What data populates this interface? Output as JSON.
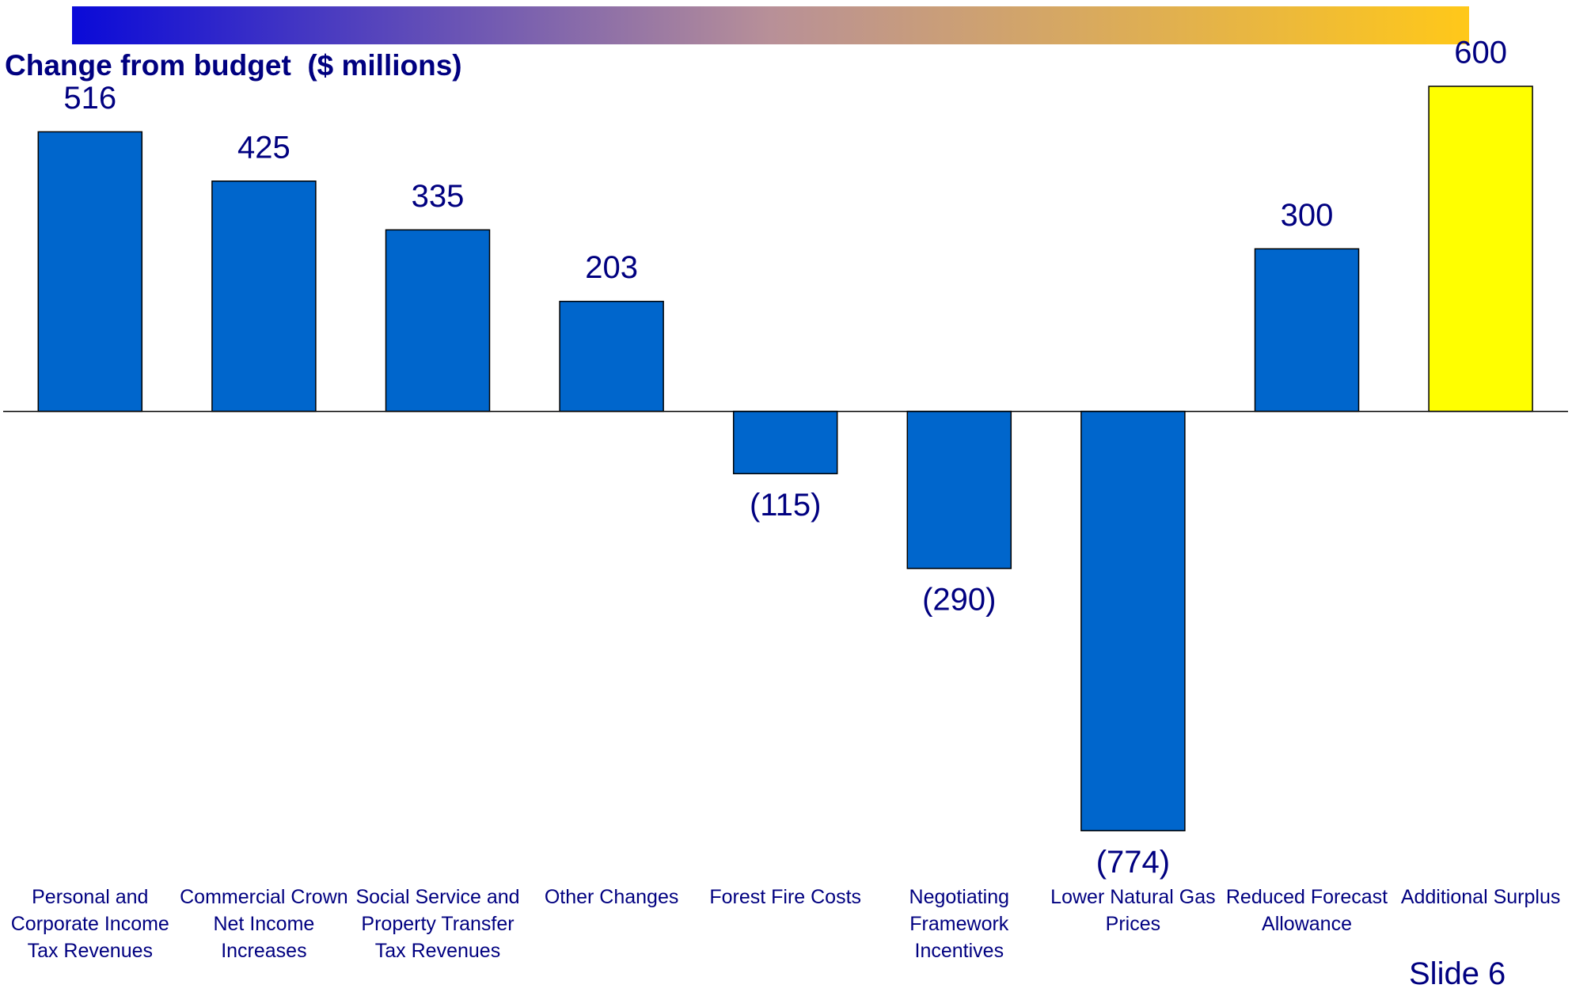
{
  "chart_data": {
    "type": "bar",
    "title": "Change from budget  ($ millions)",
    "footer": "Slide 6",
    "categories": [
      "Personal and Corporate Income Tax Revenues",
      "Commercial Crown Net Income Increases",
      "Social Service and Property Transfer Tax Revenues",
      "Other Changes",
      "Forest Fire Costs",
      "Negotiating Framework Incentives",
      "Lower Natural Gas Prices",
      "Reduced Forecast Allowance",
      "Additional Surplus"
    ],
    "values": [
      516,
      425,
      335,
      203,
      -115,
      -290,
      -774,
      300,
      600
    ],
    "value_labels": [
      "516",
      "425",
      "335",
      "203",
      "(115)",
      "(290)",
      "(774)",
      "300",
      "600"
    ],
    "colors": [
      "#0066cc",
      "#0066cc",
      "#0066cc",
      "#0066cc",
      "#0066cc",
      "#0066cc",
      "#0066cc",
      "#0066cc",
      "#ffff00"
    ],
    "ylim": [
      -800,
      600
    ]
  }
}
